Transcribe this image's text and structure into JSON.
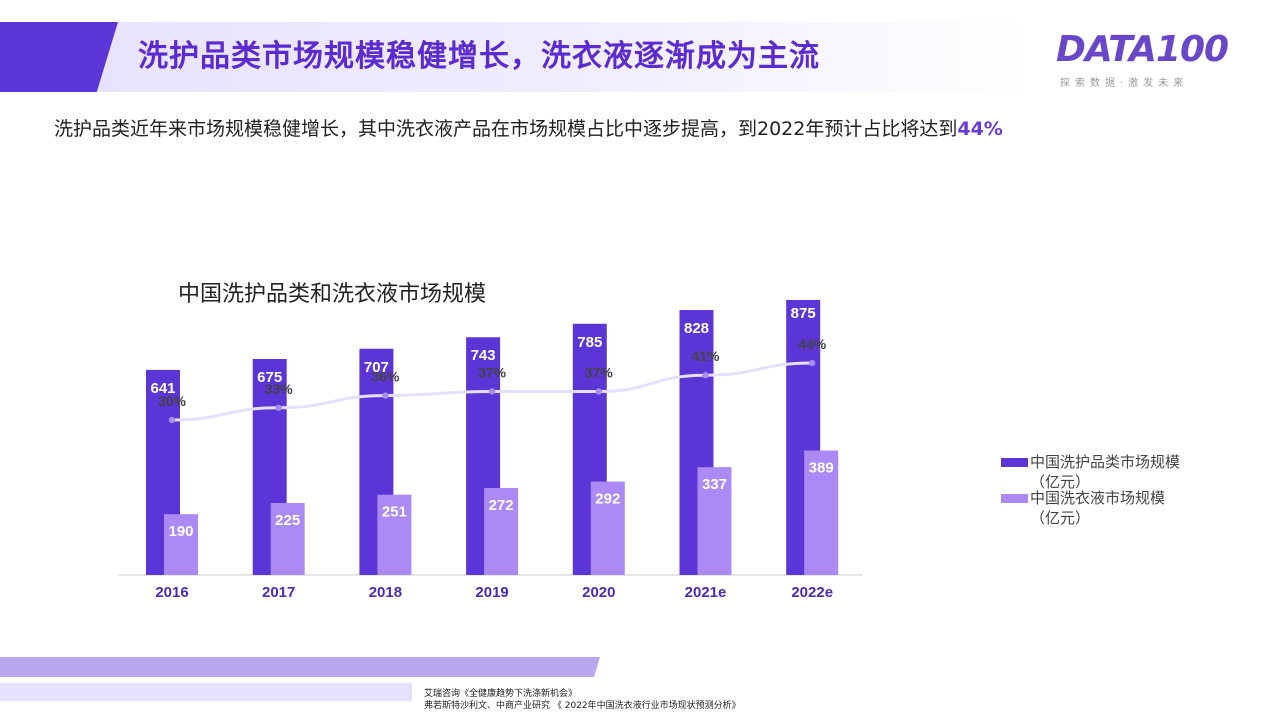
{
  "slide": {
    "title": "洗护品类市场规模稳健增长，洗衣液逐渐成为主流",
    "subtitle_text": "洗护品类近年来市场规模稳健增长，其中洗衣液产品在市场规模占比中逐步提高，到2022年预计占比将达到",
    "subtitle_highlight": "44%"
  },
  "logo": {
    "name": "DATA100",
    "tagline": "探索数据·激发未来"
  },
  "colors": {
    "primary": "#5b35d6",
    "secondary": "#ab8af5",
    "line": "#e6e0ff",
    "accent_text": "#6a3ad6"
  },
  "chart_data": {
    "type": "bar",
    "title": "中国洗护品类和洗衣液市场规模",
    "categories": [
      "2016",
      "2017",
      "2018",
      "2019",
      "2020",
      "2021e",
      "2022e"
    ],
    "series": [
      {
        "name": "中国洗护品类市场规模\n（亿元）",
        "values": [
          641,
          675,
          707,
          743,
          785,
          828,
          875
        ],
        "color": "#5b35d6"
      },
      {
        "name": "中国洗衣液市场规模\n（亿元）",
        "values": [
          190,
          225,
          251,
          272,
          292,
          337,
          389
        ],
        "color": "#ab8af5"
      }
    ],
    "line": {
      "values": [
        30,
        33,
        36,
        37,
        37,
        41,
        44
      ],
      "labels": [
        "30%",
        "33%",
        "36%",
        "37%",
        "37%",
        "41%",
        "44%"
      ],
      "color": "#e6e0ff"
    },
    "ylim": [
      0,
      1000
    ],
    "grid": false,
    "legend_position": "right"
  },
  "footer": {
    "source_1": "艾瑞咨询《全健康趋势下洗涤新机会》",
    "source_2": "弗若斯特沙利文、中商产业研究 《 2022年中国洗衣液行业市场现状预测分析》"
  }
}
